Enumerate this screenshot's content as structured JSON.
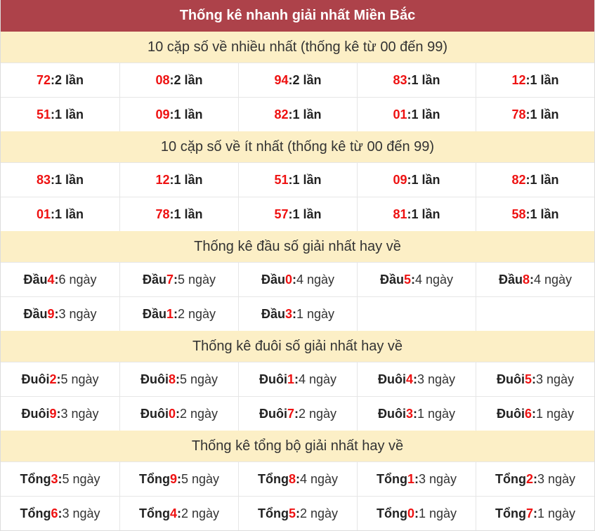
{
  "title": "Thống kê nhanh giải nhất Miền Bắc",
  "sections": [
    {
      "title": "10 cặp số về nhiều nhất (thống kê từ 00 đến 99)",
      "rows": [
        [
          {
            "num": "72",
            "sep": ":",
            "text": "2 lần"
          },
          {
            "num": "08",
            "sep": ":",
            "text": "2 lần"
          },
          {
            "num": "94",
            "sep": ":",
            "text": "2 lần"
          },
          {
            "num": "83",
            "sep": ":",
            "text": "1 lần"
          },
          {
            "num": "12",
            "sep": ":",
            "text": "1 lần"
          }
        ],
        [
          {
            "num": "51",
            "sep": ":",
            "text": "1 lần"
          },
          {
            "num": "09",
            "sep": ":",
            "text": "1 lần"
          },
          {
            "num": "82",
            "sep": ":",
            "text": "1 lần"
          },
          {
            "num": "01",
            "sep": ":",
            "text": "1 lần"
          },
          {
            "num": "78",
            "sep": ":",
            "text": "1 lần"
          }
        ]
      ]
    },
    {
      "title": "10 cặp số về ít nhất (thống kê từ 00 đến 99)",
      "rows": [
        [
          {
            "num": "83",
            "sep": ":",
            "text": "1 lần"
          },
          {
            "num": "12",
            "sep": ":",
            "text": "1 lần"
          },
          {
            "num": "51",
            "sep": ":",
            "text": "1 lần"
          },
          {
            "num": "09",
            "sep": ":",
            "text": "1 lần"
          },
          {
            "num": "82",
            "sep": ":",
            "text": "1 lần"
          }
        ],
        [
          {
            "num": "01",
            "sep": ":",
            "text": "1 lần"
          },
          {
            "num": "78",
            "sep": ":",
            "text": "1 lần"
          },
          {
            "num": "57",
            "sep": ":",
            "text": "1 lần"
          },
          {
            "num": "81",
            "sep": ":",
            "text": "1 lần"
          },
          {
            "num": "58",
            "sep": ":",
            "text": "1 lần"
          }
        ]
      ]
    },
    {
      "title": "Thống kê đầu số giải nhất hay về",
      "rows": [
        [
          {
            "label": "Đầu",
            "num": "4",
            "sep": ":",
            "text": "6 ngày"
          },
          {
            "label": "Đầu",
            "num": "7",
            "sep": ":",
            "text": "5 ngày"
          },
          {
            "label": "Đầu",
            "num": "0",
            "sep": ":",
            "text": "4 ngày"
          },
          {
            "label": "Đầu",
            "num": "5",
            "sep": ":",
            "text": "4 ngày"
          },
          {
            "label": "Đầu",
            "num": "8",
            "sep": ":",
            "text": "4 ngày"
          }
        ],
        [
          {
            "label": "Đầu",
            "num": "9",
            "sep": ":",
            "text": "3 ngày"
          },
          {
            "label": "Đầu",
            "num": "1",
            "sep": ":",
            "text": "2 ngày"
          },
          {
            "label": "Đầu",
            "num": "3",
            "sep": ":",
            "text": "1 ngày"
          }
        ]
      ]
    },
    {
      "title": "Thống kê đuôi số giải nhất hay về",
      "rows": [
        [
          {
            "label": "Đuôi",
            "num": "2",
            "sep": ":",
            "text": "5 ngày"
          },
          {
            "label": "Đuôi",
            "num": "8",
            "sep": ":",
            "text": "5 ngày"
          },
          {
            "label": "Đuôi",
            "num": "1",
            "sep": ":",
            "text": "4 ngày"
          },
          {
            "label": "Đuôi",
            "num": "4",
            "sep": ":",
            "text": "3 ngày"
          },
          {
            "label": "Đuôi",
            "num": "5",
            "sep": ":",
            "text": "3 ngày"
          }
        ],
        [
          {
            "label": "Đuôi",
            "num": "9",
            "sep": ":",
            "text": "3 ngày"
          },
          {
            "label": "Đuôi",
            "num": "0",
            "sep": ":",
            "text": "2 ngày"
          },
          {
            "label": "Đuôi",
            "num": "7",
            "sep": ":",
            "text": "2 ngày"
          },
          {
            "label": "Đuôi",
            "num": "3",
            "sep": ":",
            "text": "1 ngày"
          },
          {
            "label": "Đuôi",
            "num": "6",
            "sep": ":",
            "text": "1 ngày"
          }
        ]
      ]
    },
    {
      "title": "Thống kê tổng bộ giải nhất hay về",
      "rows": [
        [
          {
            "label": "Tổng",
            "num": "3",
            "sep": ":",
            "text": "5 ngày"
          },
          {
            "label": "Tổng",
            "num": "9",
            "sep": ":",
            "text": "5 ngày"
          },
          {
            "label": "Tổng",
            "num": "8",
            "sep": ":",
            "text": "4 ngày"
          },
          {
            "label": "Tổng",
            "num": "1",
            "sep": ":",
            "text": "3 ngày"
          },
          {
            "label": "Tổng",
            "num": "2",
            "sep": ":",
            "text": "3 ngày"
          }
        ],
        [
          {
            "label": "Tổng",
            "num": "6",
            "sep": ":",
            "text": "3 ngày"
          },
          {
            "label": "Tổng",
            "num": "4",
            "sep": ":",
            "text": "2 ngày"
          },
          {
            "label": "Tổng",
            "num": "5",
            "sep": ":",
            "text": "2 ngày"
          },
          {
            "label": "Tổng",
            "num": "0",
            "sep": ":",
            "text": "1 ngày"
          },
          {
            "label": "Tổng",
            "num": "7",
            "sep": ":",
            "text": "1 ngày"
          }
        ]
      ]
    }
  ]
}
